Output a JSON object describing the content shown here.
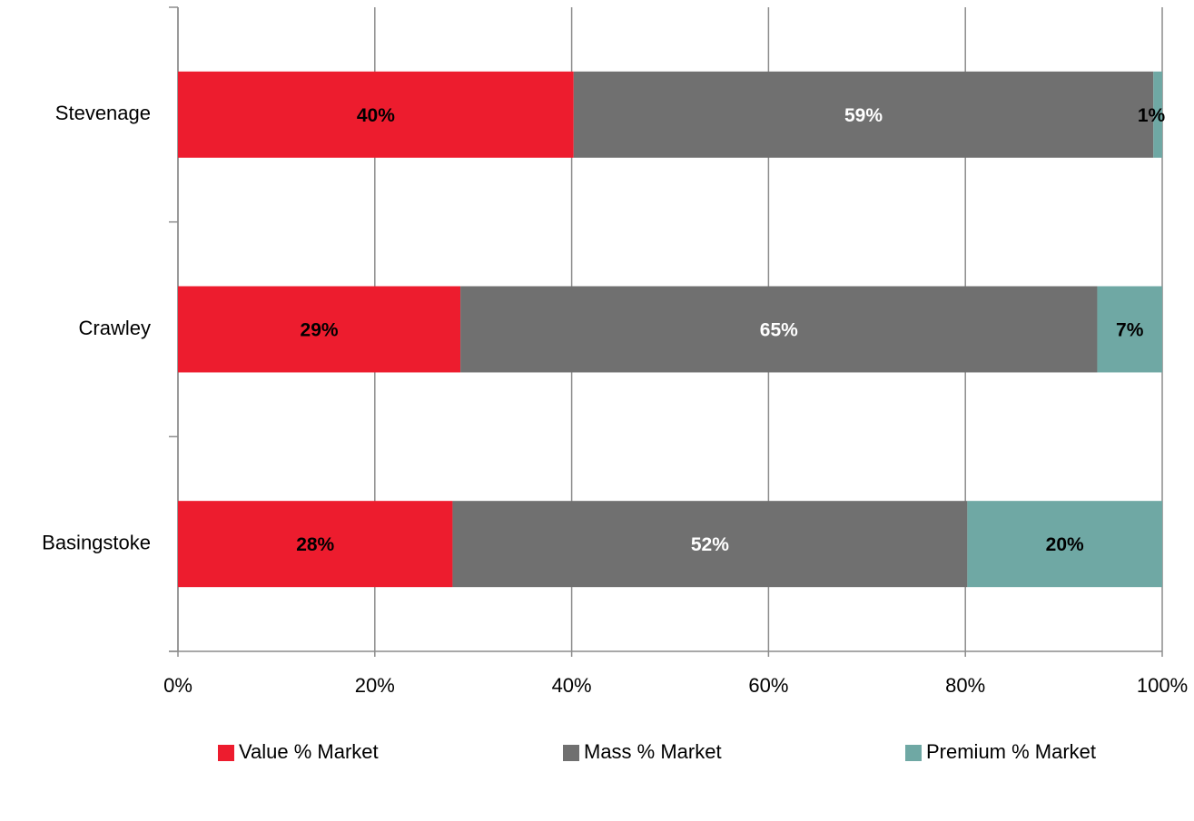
{
  "chart_data": {
    "type": "stacked_bar_horizontal",
    "categories": [
      "Stevenage",
      "Crawley",
      "Basingstoke"
    ],
    "series": [
      {
        "name": "Value % Market",
        "color": "#ed1c2e",
        "values": [
          40.2,
          28.7,
          27.9
        ],
        "value_labels": [
          "40%",
          "29%",
          "28%"
        ]
      },
      {
        "name": "Mass % Market",
        "color": "#707070",
        "values": [
          58.9,
          64.7,
          52.3
        ],
        "value_labels": [
          "59%",
          "65%",
          "52%"
        ]
      },
      {
        "name": "Premium % Market",
        "color": "#6fa8a4",
        "values": [
          0.9,
          6.6,
          19.8
        ],
        "value_labels": [
          "1%",
          "7%",
          "20%"
        ]
      }
    ],
    "xlim": [
      0,
      100
    ],
    "xticks": [
      {
        "value": 0,
        "label": "0%"
      },
      {
        "value": 20,
        "label": "20%"
      },
      {
        "value": 40,
        "label": "40%"
      },
      {
        "value": 60,
        "label": "60%"
      },
      {
        "value": 80,
        "label": "80%"
      },
      {
        "value": 100,
        "label": "100%"
      }
    ],
    "grid": true,
    "legend": "bottom"
  }
}
